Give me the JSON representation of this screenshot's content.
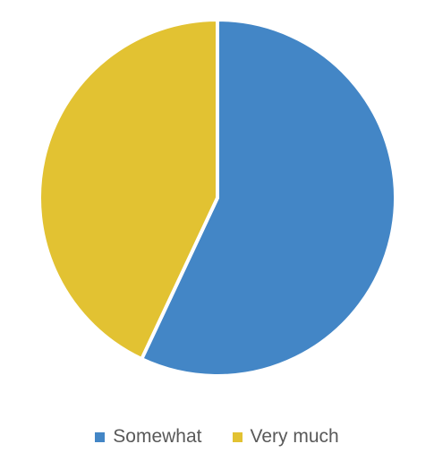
{
  "chart_data": {
    "type": "pie",
    "title": "",
    "slices": [
      {
        "name": "Somewhat",
        "value": 57,
        "color": "#4386C6"
      },
      {
        "name": "Very much",
        "value": 43,
        "color": "#E2C232"
      }
    ],
    "start_angle_deg": 0,
    "direction": "clockwise",
    "legend_placement": "bottom"
  }
}
